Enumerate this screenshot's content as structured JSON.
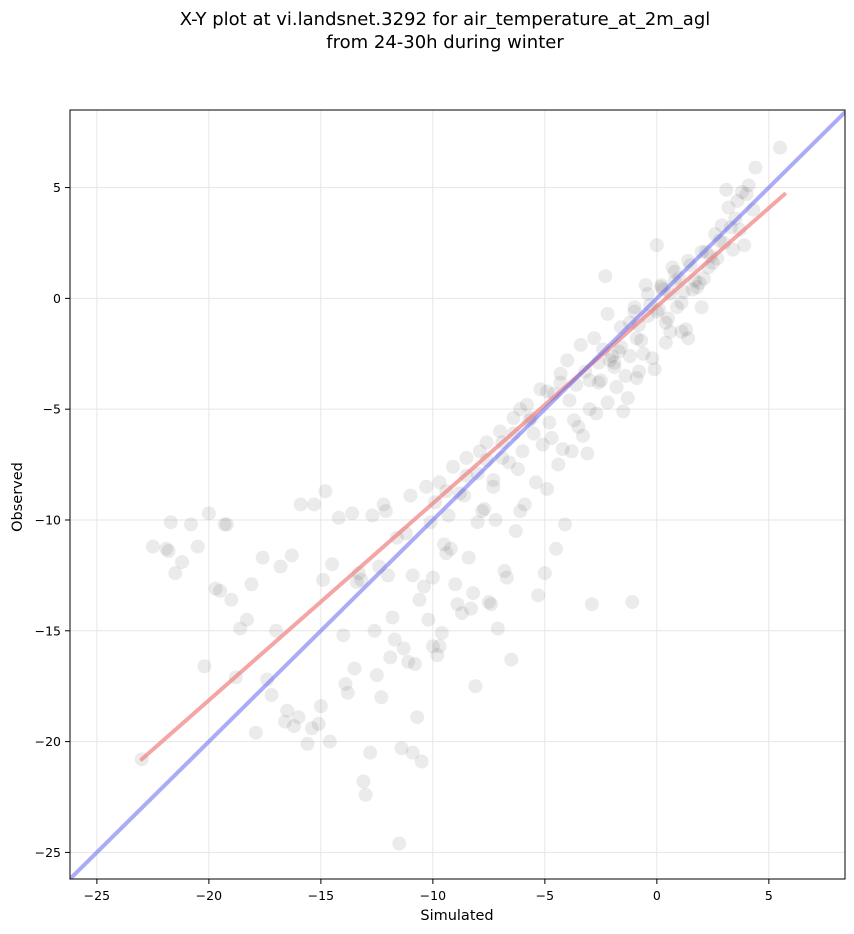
{
  "chart_data": {
    "type": "scatter",
    "title_line1": "X-Y plot at vi.landsnet.3292 for air_temperature_at_2m_agl",
    "title_line2": "from 24-30h during winter",
    "xlabel": "Simulated",
    "ylabel": "Observed",
    "xlim": [
      -26.2,
      8.4
    ],
    "ylim": [
      -26.2,
      8.5
    ],
    "xticks": [
      -25,
      -20,
      -15,
      -10,
      -5,
      0,
      5
    ],
    "yticks": [
      -25,
      -20,
      -15,
      -10,
      -5,
      0,
      5
    ],
    "tick_labels_x": [
      "−25",
      "−20",
      "−15",
      "−10",
      "−5",
      "0",
      "5"
    ],
    "tick_labels_y": [
      "−25",
      "−20",
      "−15",
      "−10",
      "−5",
      "0",
      "5"
    ],
    "grid": true,
    "colors": {
      "points": "#000000",
      "fit_line": "#f08080",
      "identity_line": "#6666ee",
      "grid": "#e6e6e6"
    },
    "series": [
      {
        "kind": "points",
        "alpha": 0.08,
        "x": [
          -23.0,
          -22.5,
          -21.8,
          -21.5,
          -21.7,
          -21.2,
          -20.8,
          -20.2,
          -19.7,
          -19.2,
          -19.0,
          -18.8,
          -18.3,
          -17.9,
          -17.6,
          -17.2,
          -16.8,
          -16.5,
          -16.2,
          -15.9,
          -15.6,
          -15.3,
          -15.0,
          -14.8,
          -14.5,
          -14.2,
          -13.9,
          -13.6,
          -13.3,
          -13.0,
          -12.7,
          -12.4,
          -12.1,
          -11.8,
          -11.5,
          -11.2,
          -10.9,
          -10.6,
          -10.3,
          -10.0,
          -9.7,
          -9.4,
          -9.1,
          -8.8,
          -8.5,
          -8.2,
          -7.9,
          -7.6,
          -7.3,
          -7.0,
          -6.7,
          -6.4,
          -6.1,
          -5.8,
          -5.5,
          -5.2,
          -4.9,
          -4.6,
          -4.3,
          -4.0,
          -3.7,
          -3.4,
          -3.1,
          -2.8,
          -2.5,
          -2.2,
          -1.9,
          -1.6,
          -1.3,
          -1.0,
          -0.7,
          -0.4,
          -0.1,
          0.2,
          0.5,
          0.8,
          1.1,
          1.4,
          1.7,
          2.0,
          2.3,
          2.6,
          2.9,
          3.2,
          3.5,
          3.8,
          4.1,
          4.4,
          5.5,
          -21.9,
          -20.5,
          -19.5,
          -18.6,
          -17.4,
          -16.6,
          -16.0,
          -15.4,
          -14.6,
          -13.8,
          -13.1,
          -12.5,
          -11.9,
          -11.3,
          -10.8,
          -10.2,
          -9.6,
          -9.0,
          -8.4,
          -7.8,
          -7.2,
          -6.6,
          -6.0,
          -5.4,
          -4.8,
          -4.2,
          -3.6,
          -3.0,
          -2.4,
          -1.8,
          -1.2,
          -0.6,
          0.0,
          0.6,
          1.2,
          1.8,
          2.4,
          3.0,
          3.6,
          -20.0,
          -18.1,
          -16.3,
          -14.9,
          -13.4,
          -12.2,
          -11.0,
          -10.1,
          -9.3,
          -8.6,
          -7.7,
          -6.9,
          -6.2,
          -5.6,
          -4.7,
          -3.9,
          -3.2,
          -2.6,
          -1.7,
          -0.9,
          -0.3,
          0.4,
          1.0,
          1.9,
          2.7,
          3.3,
          -19.3,
          -17.0,
          -15.1,
          -13.2,
          -12.0,
          -11.1,
          -10.4,
          -9.5,
          -8.7,
          -8.0,
          -7.4,
          -6.8,
          -5.9,
          -5.1,
          -4.4,
          -3.5,
          -2.7,
          -2.0,
          -1.4,
          -0.8,
          -0.2,
          0.3,
          0.9,
          1.5,
          2.1,
          2.8,
          3.4,
          4.0,
          -11.4,
          -12.8,
          -10.5,
          -9.8,
          -11.7,
          -13.5,
          -10.0,
          -8.9,
          -7.1,
          -5.3,
          -9.9,
          -12.6,
          -14.0,
          -11.6,
          -10.7,
          -9.2,
          -8.3,
          -7.5,
          -6.3,
          -5.0,
          -4.5,
          -3.3,
          -2.1,
          -1.5,
          -0.5,
          0.1,
          0.7,
          1.3,
          2.2,
          3.1,
          3.7,
          4.3,
          -12.3,
          -10.9,
          -9.7,
          -8.1,
          -6.5,
          -4.1,
          -2.9,
          -1.1,
          0.0,
          1.6,
          2.5,
          3.9,
          -1.9,
          -0.9,
          0.4,
          1.1,
          -2.3,
          -1.6,
          -0.4,
          0.8,
          2.0,
          -3.0,
          -1.2,
          0.2,
          1.4,
          -2.6,
          -1.0,
          0.6,
          -3.8,
          -2.2,
          -0.8,
          -6.4,
          -5.7,
          -4.9,
          -4.3,
          -7.6,
          -6.9,
          -8.5,
          -9.4,
          -8.0,
          -7.3,
          -6.1
        ],
        "y": [
          -20.8,
          -11.2,
          -11.4,
          -12.4,
          -10.1,
          -11.9,
          -10.2,
          -16.6,
          -13.1,
          -10.2,
          -13.6,
          -17.1,
          -14.5,
          -19.6,
          -11.7,
          -17.9,
          -12.1,
          -18.6,
          -19.3,
          -9.3,
          -20.1,
          -9.3,
          -18.4,
          -8.7,
          -12.0,
          -9.9,
          -17.4,
          -9.7,
          -12.4,
          -22.4,
          -9.8,
          -12.1,
          -9.6,
          -14.4,
          -24.6,
          -10.6,
          -20.5,
          -13.6,
          -8.5,
          -12.6,
          -8.3,
          -11.5,
          -7.6,
          -8.8,
          -7.2,
          -13.3,
          -6.9,
          -6.5,
          -8.2,
          -6.0,
          -12.6,
          -5.4,
          -9.6,
          -4.8,
          -6.1,
          -4.1,
          -8.6,
          -4.3,
          -3.4,
          -2.8,
          -5.5,
          -2.1,
          -7.0,
          -1.8,
          -3.7,
          -0.7,
          -2.9,
          -1.3,
          -4.5,
          -0.4,
          -1.9,
          0.2,
          -3.2,
          0.6,
          -0.9,
          1.2,
          -0.2,
          1.7,
          0.8,
          2.1,
          1.4,
          2.9,
          3.3,
          4.1,
          3.6,
          4.8,
          5.1,
          5.9,
          6.8,
          -11.3,
          -11.2,
          -13.2,
          -14.9,
          -17.2,
          -19.1,
          -18.9,
          -19.4,
          -20.0,
          -17.8,
          -21.8,
          -17.0,
          -16.2,
          -15.8,
          -16.5,
          -14.5,
          -15.1,
          -12.9,
          -11.7,
          -9.6,
          -10.0,
          -7.4,
          -6.9,
          -8.3,
          -5.6,
          -6.8,
          -3.9,
          -5.0,
          -2.3,
          -4.0,
          -1.1,
          -2.5,
          -0.6,
          -1.5,
          0.3,
          0.5,
          1.9,
          2.5,
          4.4,
          -9.7,
          -12.9,
          -11.6,
          -12.7,
          -12.8,
          -9.3,
          -8.9,
          -10.1,
          -9.8,
          -8.9,
          -9.5,
          -7.2,
          -7.7,
          -5.4,
          -6.3,
          -4.6,
          -3.3,
          -3.8,
          -2.4,
          -1.8,
          -0.3,
          -1.1,
          0.9,
          0.7,
          1.8,
          3.2,
          -10.2,
          -15.0,
          -19.2,
          -12.7,
          -12.5,
          -16.4,
          -13.0,
          -11.1,
          -14.2,
          -10.1,
          -13.8,
          -12.3,
          -9.3,
          -6.6,
          -7.5,
          -5.8,
          -5.2,
          -2.6,
          -3.5,
          -1.2,
          -2.7,
          0.4,
          -0.4,
          1.5,
          0.9,
          2.6,
          2.2,
          4.7,
          -20.3,
          -20.5,
          -20.9,
          -16.1,
          -15.4,
          -16.7,
          -15.7,
          -13.8,
          -14.9,
          -13.4,
          -9.2,
          -15.0,
          -15.2,
          -10.8,
          -18.9,
          -11.3,
          -14.0,
          -13.7,
          -10.5,
          -12.4,
          -11.3,
          -6.2,
          -2.8,
          -5.1,
          0.6,
          -0.5,
          1.4,
          -1.4,
          2.1,
          4.9,
          3.1,
          4.0,
          -18.0,
          -12.5,
          -15.7,
          -17.5,
          -16.3,
          -10.2,
          -13.8,
          -13.7,
          2.4,
          0.4,
          1.6,
          2.4,
          -3.1,
          -3.6,
          -2.0,
          -1.5,
          1.0,
          -2.2,
          -0.8,
          0.8,
          -0.4,
          -3.7,
          -2.6,
          0.5,
          -1.8,
          -2.9,
          -0.6,
          0.2,
          -6.9,
          -4.7,
          -3.3,
          -6.1,
          -5.5,
          -4.2,
          -3.8,
          -7.3,
          -6.5,
          -8.0,
          -8.7,
          -7.9,
          -8.5,
          -5.0
        ]
      },
      {
        "kind": "fit_line",
        "x": [
          -23.0,
          5.7
        ],
        "y": [
          -20.8,
          4.7
        ]
      },
      {
        "kind": "identity_line",
        "x": [
          -26.2,
          8.4
        ],
        "y": [
          -26.2,
          8.4
        ]
      }
    ]
  }
}
